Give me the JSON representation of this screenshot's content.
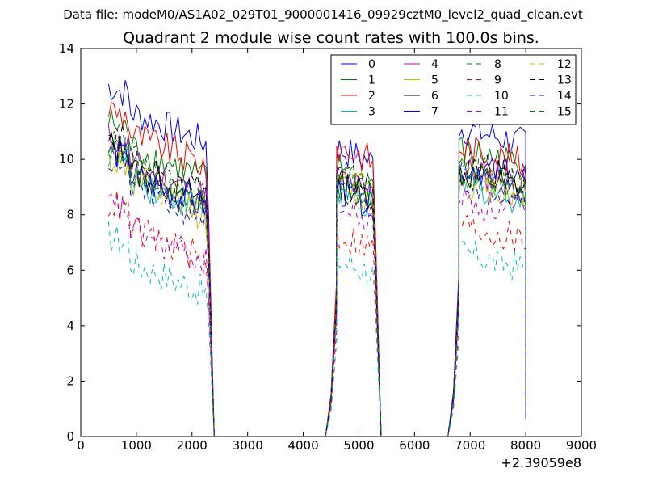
{
  "suptitle": "Data file: modeM0/AS1A02_029T01_9000001416_09929cztM0_level2_quad_clean.evt",
  "chart_data": {
    "type": "line",
    "title": "Quadrant 2 module wise count rates with 100.0s bins.",
    "xlabel": "",
    "ylabel": "",
    "x_offset_label": "+2.39059e8",
    "xlim": [
      0,
      9000
    ],
    "ylim": [
      0,
      14
    ],
    "xticks": [
      0,
      1000,
      2000,
      3000,
      4000,
      5000,
      6000,
      7000,
      8000,
      9000
    ],
    "yticks": [
      0,
      2,
      4,
      6,
      8,
      10,
      12,
      14
    ],
    "legend_position": "top-right",
    "legend_columns": 4,
    "segments": [
      {
        "t0": 500,
        "t1": 2300,
        "cut": 2400
      },
      {
        "t0": 4400,
        "t1": 5300,
        "ramp_start": 4400,
        "cut": 5400
      },
      {
        "t0": 6600,
        "t1": 8000,
        "ramp_start": 6600,
        "end": 8000
      }
    ],
    "series": [
      {
        "name": "0",
        "color": "#0000ff",
        "dash": "solid",
        "levels": [
          11.3,
          10.2,
          10.9
        ]
      },
      {
        "name": "1",
        "color": "#008000",
        "dash": "solid",
        "levels": [
          10.0,
          9.5,
          10.1
        ]
      },
      {
        "name": "2",
        "color": "#ff0000",
        "dash": "solid",
        "levels": [
          10.5,
          10.3,
          10.2
        ]
      },
      {
        "name": "3",
        "color": "#00bfbf",
        "dash": "solid",
        "levels": [
          8.9,
          8.6,
          8.9
        ]
      },
      {
        "name": "4",
        "color": "#bf00bf",
        "dash": "solid",
        "levels": [
          9.4,
          9.1,
          9.4
        ]
      },
      {
        "name": "5",
        "color": "#bfbf00",
        "dash": "solid",
        "levels": [
          8.7,
          8.8,
          9.0
        ]
      },
      {
        "name": "6",
        "color": "#000000",
        "dash": "solid",
        "levels": [
          9.2,
          9.0,
          9.3
        ]
      },
      {
        "name": "7",
        "color": "#0000ff",
        "dash": "solid",
        "levels": [
          9.0,
          8.7,
          9.6
        ]
      },
      {
        "name": "8",
        "color": "#008000",
        "dash": "dashed",
        "levels": [
          9.2,
          8.8,
          9.2
        ]
      },
      {
        "name": "9",
        "color": "#ff0000",
        "dash": "dashed",
        "levels": [
          7.1,
          7.1,
          7.4
        ]
      },
      {
        "name": "10",
        "color": "#00bfbf",
        "dash": "dashed",
        "levels": [
          5.9,
          6.2,
          6.4
        ]
      },
      {
        "name": "11",
        "color": "#bf00bf",
        "dash": "dashed",
        "levels": [
          7.0,
          8.0,
          8.3
        ]
      },
      {
        "name": "12",
        "color": "#bfbf00",
        "dash": "dashed",
        "levels": [
          9.0,
          9.2,
          9.3
        ]
      },
      {
        "name": "13",
        "color": "#000000",
        "dash": "dashed",
        "levels": [
          9.6,
          9.3,
          9.6
        ]
      },
      {
        "name": "14",
        "color": "#0000ff",
        "dash": "dashed",
        "levels": [
          8.6,
          8.6,
          9.1
        ]
      },
      {
        "name": "15",
        "color": "#008000",
        "dash": "dashed",
        "levels": [
          9.3,
          9.0,
          9.4
        ]
      }
    ]
  }
}
